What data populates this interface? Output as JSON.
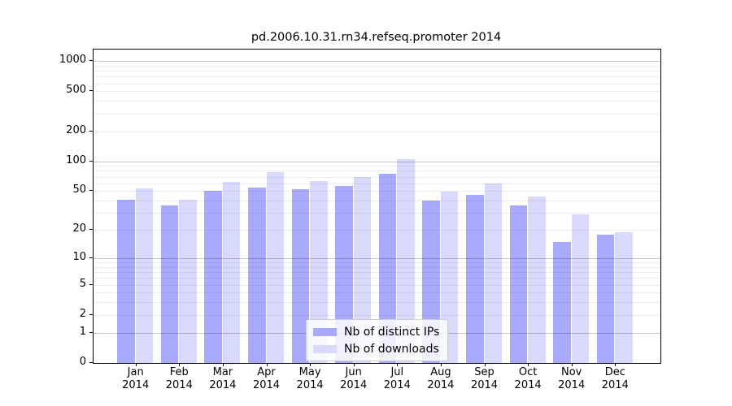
{
  "title": "pd.2006.10.31.rn34.refseq.promoter 2014",
  "chart_data": {
    "type": "bar",
    "title": "pd.2006.10.31.rn34.refseq.promoter 2014",
    "months": [
      "Jan",
      "Feb",
      "Mar",
      "Apr",
      "May",
      "Jun",
      "Jul",
      "Aug",
      "Sep",
      "Oct",
      "Nov",
      "Dec"
    ],
    "year": "2014",
    "categories": [
      "Jan 2014",
      "Feb 2014",
      "Mar 2014",
      "Apr 2014",
      "May 2014",
      "Jun 2014",
      "Jul 2014",
      "Aug 2014",
      "Sep 2014",
      "Oct 2014",
      "Nov 2014",
      "Dec 2014"
    ],
    "series": [
      {
        "name": "Nb of distinct IPs",
        "key": "distinct-ips",
        "color": "#a9a9fd",
        "values": [
          41,
          36,
          50,
          54,
          52,
          56,
          75,
          40,
          46,
          36,
          15,
          18
        ]
      },
      {
        "name": "Nb of downloads",
        "key": "downloads",
        "color": "#d9d9fb",
        "values": [
          53,
          41,
          62,
          78,
          63,
          70,
          105,
          49,
          60,
          44,
          29,
          19
        ]
      }
    ],
    "yscale": "log10(value+1)",
    "y_ticks": [
      0,
      1,
      2,
      5,
      10,
      20,
      50,
      100,
      200,
      500,
      1000
    ],
    "y_max": 1300,
    "xlabel": "",
    "ylabel": "",
    "grid": "horizontal minor + decade major, drawn over bars",
    "legend_position": "lower center"
  },
  "colors": {
    "background": "#ffffff",
    "frame": "#000000",
    "grid_major": "rgba(0,0,0,0.22)",
    "grid_minor": "rgba(0,0,0,0.07)",
    "bar_distinct_ips": "#a9a9fd",
    "bar_downloads": "#d9d9fb",
    "legend_border": "#cccccc"
  }
}
